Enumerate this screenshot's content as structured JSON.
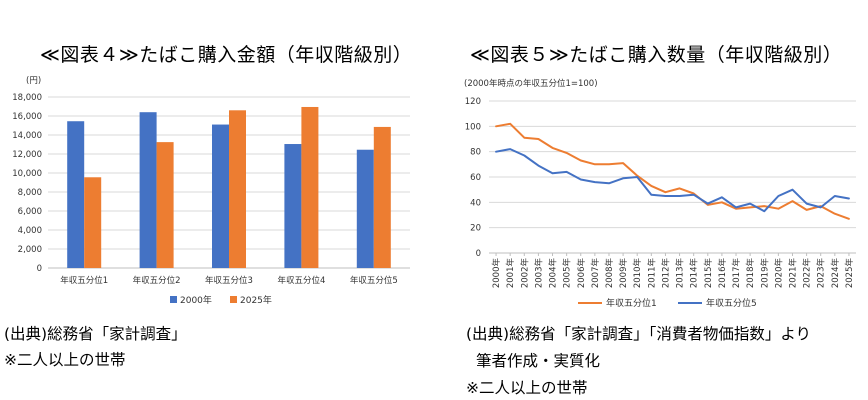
{
  "left_chart": {
    "title": "≪図表４≫たばこ購入金額（年収階級別）",
    "unit": "(円)",
    "source": "(出典)総務省「家計調査」",
    "household_note": "※二人以上の世帯",
    "colors": {
      "series1": "#4472C4",
      "series2": "#ED7D31",
      "grid": "#D9D9D9"
    }
  },
  "right_chart": {
    "title": "≪図表５≫たばこ購入数量（年収階級別）",
    "base_note": "(2000年時点の年収五分位1=100)",
    "source": "(出典)総務省「家計調査」「消費者物価指数」より",
    "source_line2": "筆者作成・実質化",
    "household_note": "※二人以上の世帯",
    "colors": {
      "series1": "#ED7D31",
      "series2": "#4472C4",
      "grid": "#D9D9D9"
    }
  },
  "chart_data": [
    {
      "type": "bar",
      "title": "≪図表４≫たばこ購入金額（年収階級別）",
      "ylabel": "(円)",
      "ylim": [
        0,
        18000
      ],
      "yticks": [
        "0",
        "2,000",
        "4,000",
        "6,000",
        "8,000",
        "10,000",
        "12,000",
        "14,000",
        "16,000",
        "18,000"
      ],
      "categories": [
        "年収五分位1",
        "年収五分位2",
        "年収五分位3",
        "年収五分位4",
        "年収五分位5"
      ],
      "series": [
        {
          "name": "2000年",
          "values": [
            15450,
            16400,
            15100,
            13050,
            12450
          ]
        },
        {
          "name": "2025年",
          "values": [
            9550,
            13250,
            16600,
            16950,
            14850
          ]
        }
      ],
      "grid": true,
      "legend": "bottom"
    },
    {
      "type": "line",
      "title": "≪図表５≫たばこ購入数量（年収階級別）",
      "ylabel": "(2000年時点の年収五分位1=100)",
      "ylim": [
        0,
        120
      ],
      "yticks": [
        "0",
        "20",
        "40",
        "60",
        "80",
        "100",
        "120"
      ],
      "x": [
        "2000年",
        "2001年",
        "2002年",
        "2003年",
        "2004年",
        "2005年",
        "2006年",
        "2007年",
        "2008年",
        "2009年",
        "2010年",
        "2011年",
        "2012年",
        "2013年",
        "2014年",
        "2015年",
        "2016年",
        "2017年",
        "2018年",
        "2019年",
        "2020年",
        "2021年",
        "2022年",
        "2023年",
        "2024年",
        "2025年"
      ],
      "series": [
        {
          "name": "年収五分位1",
          "values": [
            100,
            102,
            91,
            90,
            83,
            79,
            73,
            70,
            70,
            71,
            61,
            53,
            48,
            51,
            47,
            38,
            40,
            35,
            36,
            37,
            35,
            41,
            34,
            37,
            31,
            27
          ]
        },
        {
          "name": "年収五分位5",
          "values": [
            80,
            82,
            77,
            69,
            63,
            64,
            58,
            56,
            55,
            59,
            60,
            46,
            45,
            45,
            46,
            39,
            44,
            36,
            39,
            33,
            45,
            50,
            39,
            36,
            45,
            43
          ]
        }
      ],
      "grid": true,
      "legend": "bottom"
    }
  ]
}
